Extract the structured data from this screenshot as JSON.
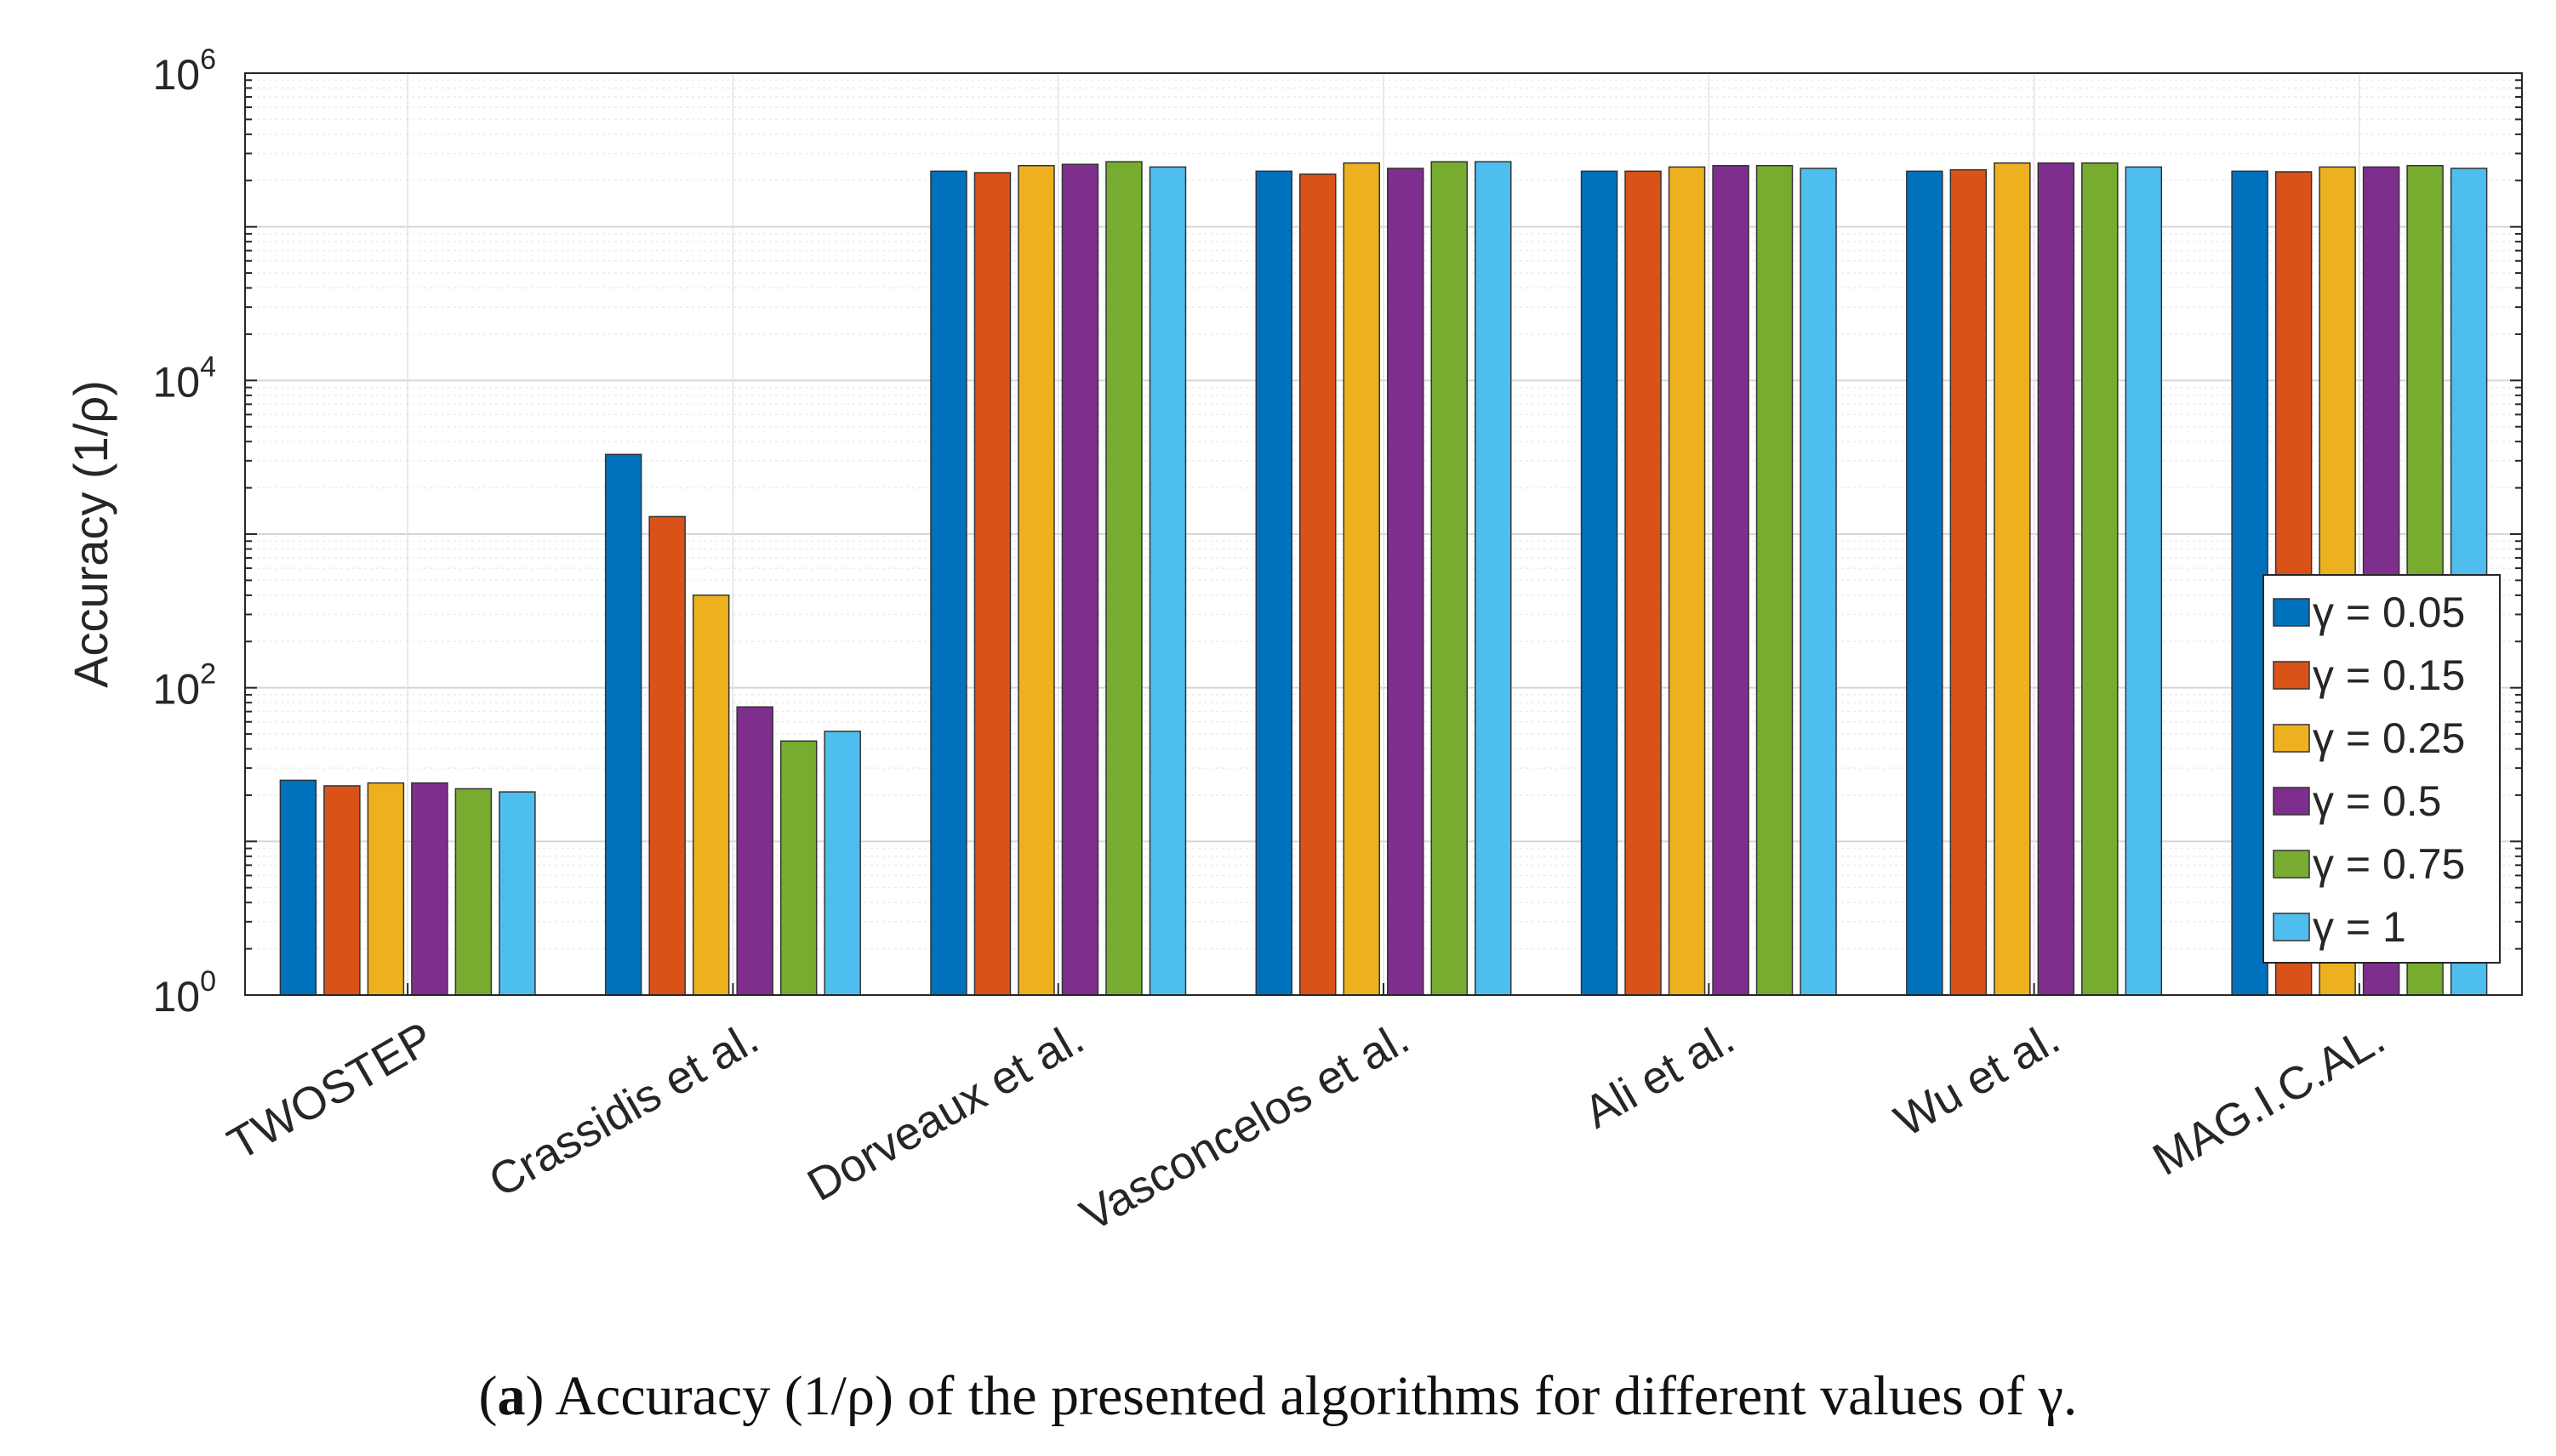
{
  "chart_data": {
    "type": "bar",
    "yscale": "log",
    "ylim": [
      1,
      1000000
    ],
    "ylabel": "Accuracy (1/ρ)",
    "ytick_labels": [
      {
        "base": "10",
        "exp": "0"
      },
      {
        "base": "10",
        "exp": "2"
      },
      {
        "base": "10",
        "exp": "4"
      },
      {
        "base": "10",
        "exp": "6"
      }
    ],
    "categories": [
      "TWOSTEP",
      "Crassidis et al.",
      "Dorveaux et al.",
      "Vasconcelos et al.",
      "Ali et al.",
      "Wu et al.",
      "MAG.I.C.AL."
    ],
    "series": [
      {
        "name": "γ = 0.05",
        "color": "#0072BD",
        "values": [
          25,
          3300,
          230000,
          230000,
          230000,
          230000,
          230000
        ]
      },
      {
        "name": "γ = 0.15",
        "color": "#D95319",
        "values": [
          23,
          1300,
          225000,
          220000,
          230000,
          235000,
          228000
        ]
      },
      {
        "name": "γ = 0.25",
        "color": "#EDB120",
        "values": [
          24,
          400,
          250000,
          260000,
          245000,
          260000,
          245000
        ]
      },
      {
        "name": "γ = 0.5",
        "color": "#7E2F8E",
        "values": [
          24,
          75,
          255000,
          240000,
          250000,
          260000,
          245000
        ]
      },
      {
        "name": "γ = 0.75",
        "color": "#77AC30",
        "values": [
          22,
          45,
          265000,
          265000,
          250000,
          260000,
          250000
        ]
      },
      {
        "name": "γ = 1",
        "color": "#4DBEEE",
        "values": [
          21,
          52,
          245000,
          265000,
          240000,
          245000,
          240000
        ]
      }
    ],
    "legend_position": "right"
  },
  "caption": {
    "label": "a",
    "text": " Accuracy (1/ρ) of the presented algorithms for different values of γ."
  }
}
